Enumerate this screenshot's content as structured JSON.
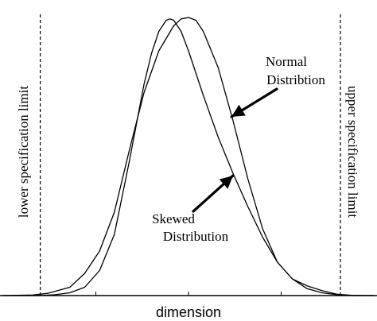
{
  "chart_data": {
    "type": "line",
    "title": "",
    "xlabel": "dimension",
    "ylabel": "",
    "xlim": [
      0,
      100
    ],
    "ylim": [
      0,
      100
    ],
    "grid": false,
    "legend": "none",
    "spec_limits": {
      "lower": {
        "x": 10,
        "label": "lower specification limit"
      },
      "upper": {
        "x": 91,
        "label": "upper specification limit"
      }
    },
    "series": [
      {
        "key": "normal",
        "x": [
          0,
          8,
          12,
          18,
          22,
          26,
          30,
          34,
          38,
          42,
          46,
          48,
          50,
          52,
          54,
          58,
          62,
          66,
          70,
          74,
          78,
          82,
          86,
          90,
          94,
          100
        ],
        "y": [
          0,
          0.2,
          0.8,
          3,
          8,
          16,
          30,
          52,
          73,
          88,
          97,
          99.5,
          100,
          99,
          95,
          82,
          63,
          42,
          24,
          12,
          6,
          3.5,
          1.8,
          0.5,
          0.1,
          0
        ]
      },
      {
        "key": "skewed",
        "x": [
          0,
          10,
          14,
          18,
          22,
          26,
          30,
          34,
          38,
          40,
          42,
          44,
          45,
          46,
          48,
          50,
          54,
          58,
          62,
          66,
          70,
          74,
          78,
          82,
          86,
          90,
          94,
          100
        ],
        "y": [
          0,
          0,
          0.3,
          1,
          3,
          9,
          22,
          48,
          76,
          87,
          95,
          99,
          99.5,
          99,
          95,
          88,
          72,
          57,
          44,
          32,
          21,
          12,
          6,
          2.5,
          1,
          0.3,
          0,
          0
        ]
      }
    ],
    "annotations": [
      {
        "key": "normal",
        "lines": [
          "Normal",
          "Distribtion"
        ]
      },
      {
        "key": "skewed",
        "lines": [
          "Skewed",
          "Distribution"
        ]
      }
    ]
  }
}
